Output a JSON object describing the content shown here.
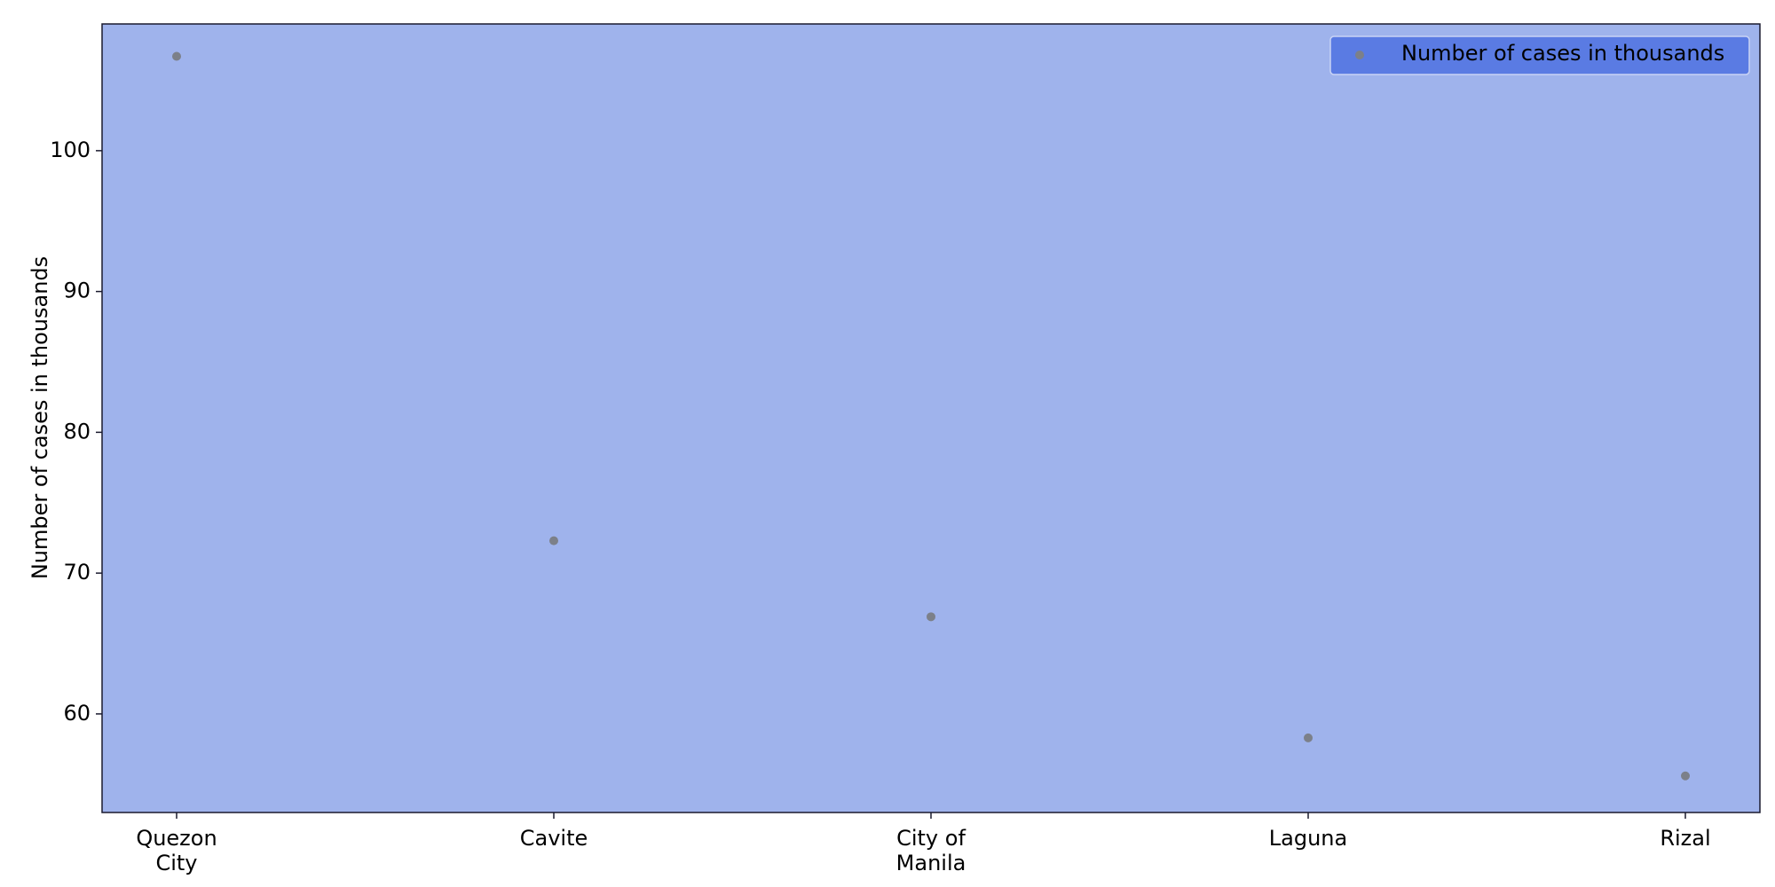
{
  "chart_data": {
    "type": "scatter",
    "title": "",
    "xlabel": "",
    "ylabel": "Number of cases in thousands",
    "categories": [
      "Quezon\nCity",
      "Cavite",
      "City of\nManila",
      "Laguna",
      "Rizal"
    ],
    "series": [
      {
        "name": "Number of cases in thousands",
        "values": [
          106.7,
          72.3,
          66.9,
          58.3,
          55.6
        ]
      }
    ],
    "ylim": [
      53,
      109
    ],
    "yticks": [
      60,
      70,
      80,
      90,
      100
    ],
    "grid": false,
    "legend_position": "top-right",
    "colors": {
      "plot_background": "#9fb3ec",
      "marker": "#7c8089",
      "legend_background": "#5a7be3",
      "legend_border": "#c9d3f5",
      "axes_border": "#1a1a2e"
    }
  }
}
